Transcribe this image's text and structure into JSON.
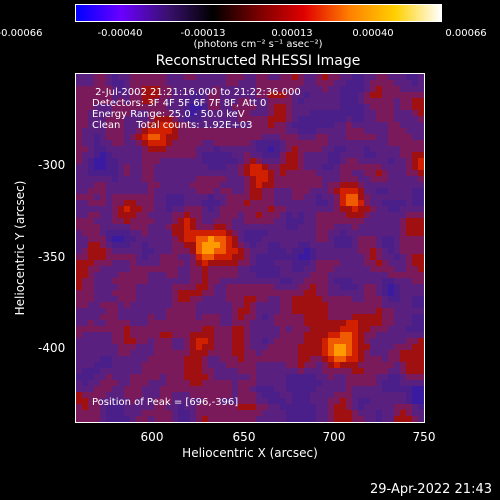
{
  "colorbar": {
    "ticks": [
      "-0.00066",
      "-0.00040",
      "-0.00013",
      "0.00013",
      "0.00040",
      "0.00066"
    ],
    "unit": "(photons cm⁻² s⁻¹ asec⁻²)",
    "colors": [
      "#0000ff",
      "#6a00ff",
      "#3a1070",
      "#000000",
      "#7a0000",
      "#e00000",
      "#ff8000",
      "#ffd000",
      "#ffffff"
    ]
  },
  "image": {
    "title": "Reconstructed RHESSI Image",
    "info_lines": [
      " 2-Jul-2002 21:21:16.000 to 21:22:36.000",
      "Detectors: 3F 4F 5F 6F 7F 8F, Att 0",
      "Energy Range: 25.0 - 50.0 keV",
      "Clean     Total counts: 1.92E+03"
    ],
    "peak_label": "Position of Peak = [696,-396]",
    "bright_regions": [
      "flare-kernel-north",
      "flare-kernel-peak",
      "bright-ridge"
    ]
  },
  "axes": {
    "xlabel": "Heliocentric X (arcsec)",
    "ylabel": "Heliocentric Y (arcsec)",
    "xticks": [
      "600",
      "650",
      "700",
      "750"
    ],
    "yticks": [
      "-300",
      "-350",
      "-400"
    ],
    "xlim": [
      560,
      750
    ],
    "ylim": [
      -440,
      -250
    ]
  },
  "footer": {
    "timestamp": "29-Apr-2022 21:43"
  }
}
